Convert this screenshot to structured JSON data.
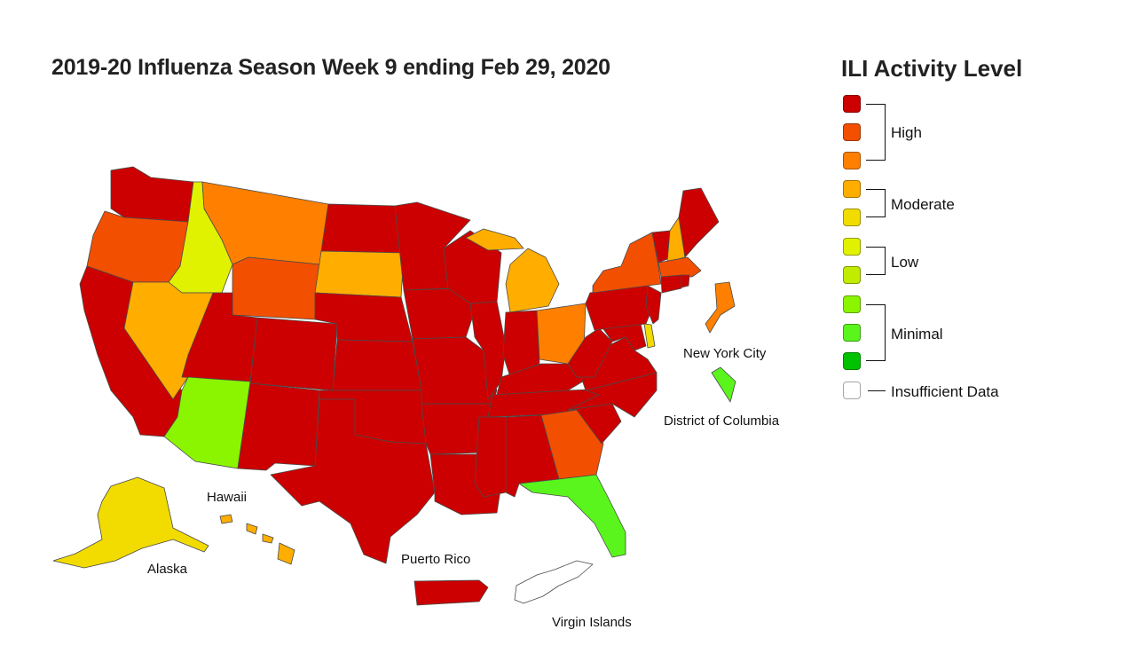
{
  "title": "2019-20 Influenza Season Week 9 ending Feb 29, 2020",
  "legend": {
    "title": "ILI Activity Level",
    "groups": [
      {
        "label": "High",
        "colors": [
          "#cc0000",
          "#f24f00",
          "#ff8000"
        ]
      },
      {
        "label": "Moderate",
        "colors": [
          "#ffae00",
          "#f2dc00"
        ]
      },
      {
        "label": "Low",
        "colors": [
          "#e1f200",
          "#c1ec00"
        ]
      },
      {
        "label": "Minimal",
        "colors": [
          "#8bf500",
          "#5af51d",
          "#00c200"
        ]
      }
    ],
    "insufficient_label": "Insufficient Data",
    "insufficient_color": "#ffffff"
  },
  "labels": {
    "new_york_city": "New York City",
    "district_of_columbia": "District of Columbia",
    "hawaii": "Hawaii",
    "alaska": "Alaska",
    "puerto_rico": "Puerto Rico",
    "virgin_islands": "Virgin Islands"
  },
  "colors": {
    "level_10": "#cc0000",
    "level_9": "#f24f00",
    "level_8": "#ff8000",
    "level_7": "#ffae00",
    "level_6": "#f2dc00",
    "level_5": "#e1f200",
    "level_4": "#c1ec00",
    "level_3": "#8bf500",
    "level_2": "#5af51d",
    "level_1": "#00c200",
    "insufficient": "#ffffff"
  },
  "activity_levels": {
    "WA": 10,
    "OR": 9,
    "CA": 10,
    "ID": 5,
    "NV": 7,
    "MT": 8,
    "WY": 9,
    "UT": 10,
    "AZ": 3,
    "CO": 10,
    "NM": 10,
    "ND": 10,
    "SD": 7,
    "NE": 10,
    "KS": 10,
    "OK": 10,
    "TX": 10,
    "MN": 10,
    "IA": 10,
    "MO": 10,
    "AR": 10,
    "LA": 10,
    "WI": 10,
    "IL": 10,
    "MI": 7,
    "IN": 10,
    "OH": 8,
    "KY": 10,
    "TN": 10,
    "MS": 10,
    "AL": 10,
    "GA": 9,
    "FL": 2,
    "SC": 10,
    "NC": 10,
    "VA": 10,
    "WV": 10,
    "MD": 10,
    "DE": 6,
    "PA": 10,
    "NJ": 10,
    "NY": 9,
    "CT": 10,
    "RI": 10,
    "MA": 9,
    "VT": 10,
    "NH": 7,
    "ME": 10,
    "AK": 6,
    "HI": 7,
    "PR": 10,
    "NYC": 8,
    "DC": 2,
    "VI": "insufficient"
  }
}
